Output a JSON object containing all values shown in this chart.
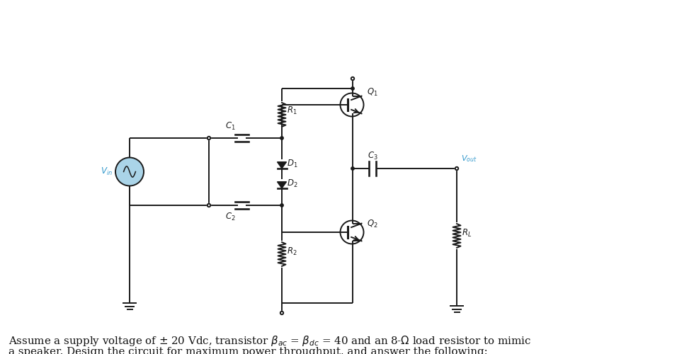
{
  "bg_color": "#ffffff",
  "line_color": "#1a1a1a",
  "blue_color": "#3399cc",
  "figsize": [
    9.56,
    5.0
  ],
  "dpi": 100,
  "text1": "Assume a supply voltage of $\\pm$ 20 Vdc, transistor $\\beta_{ac}$ = $\\beta_{dc}$ = 40 and an 8-$\\Omega$ load resistor to mimic",
  "text2": "a speaker. Design the circuit for maximum power throughput, and answer the following:"
}
